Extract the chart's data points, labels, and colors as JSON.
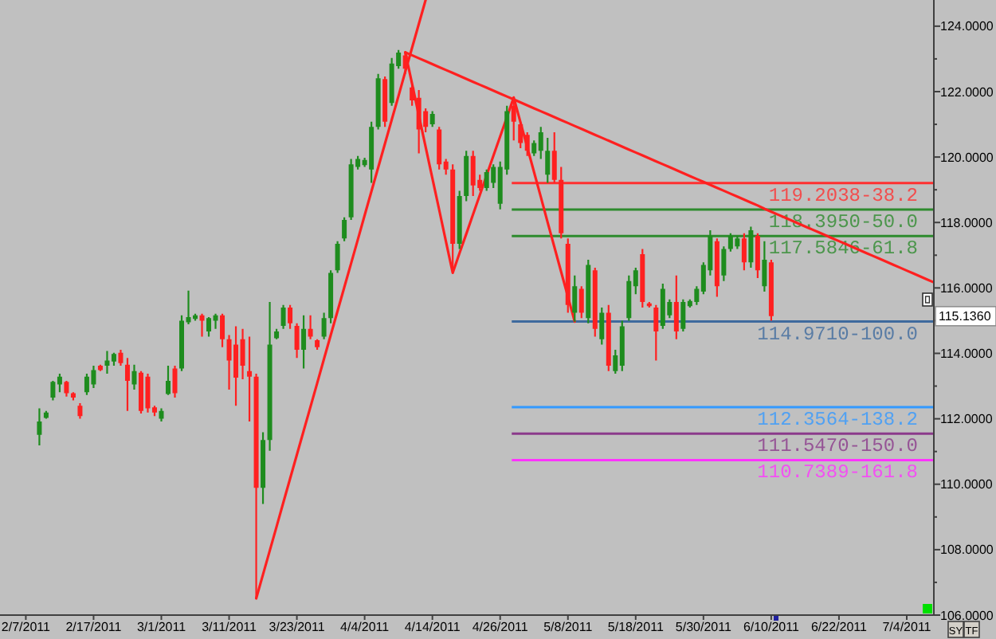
{
  "chart_data": {
    "type": "candlestick",
    "categories": [
      "2/7/2011",
      null,
      null,
      null,
      null,
      null,
      null,
      null,
      null,
      null,
      "2/17/2011",
      null,
      null,
      null,
      null,
      null,
      null,
      null,
      null,
      null,
      "3/1/2011",
      null,
      null,
      null,
      null,
      null,
      null,
      null,
      null,
      null,
      "3/11/2011",
      null,
      null,
      null,
      null,
      null,
      null,
      null,
      null,
      null,
      "3/23/2011",
      null,
      null,
      null,
      null,
      null,
      null,
      null,
      null,
      null,
      "4/4/2011",
      null,
      null,
      null,
      null,
      null,
      null,
      null,
      null,
      null,
      "4/14/2011",
      null,
      null,
      null,
      null,
      null,
      null,
      null,
      null,
      null,
      "4/26/2011",
      null,
      null,
      null,
      null,
      null,
      null,
      null,
      null,
      null,
      "5/8/2011",
      null,
      null,
      null,
      null,
      null,
      null,
      null,
      null,
      null,
      "5/18/2011",
      null,
      null,
      null,
      null,
      null,
      null,
      null,
      null,
      null,
      "5/30/2011",
      null,
      null,
      null,
      null,
      null,
      null,
      null,
      null,
      null,
      "6/10/2011",
      null,
      null,
      null,
      null,
      null,
      null,
      null,
      null,
      null,
      "6/22/2011",
      null,
      null,
      null,
      null,
      null,
      null,
      null,
      null,
      null,
      "7/4/2011",
      null,
      null,
      null,
      null
    ],
    "ohlc": [
      null,
      null,
      [
        111.51,
        112.32,
        111.19,
        111.92
      ],
      [
        112.03,
        112.24,
        112.0,
        112.19
      ],
      [
        112.65,
        113.16,
        112.56,
        113.13
      ],
      [
        113.05,
        113.38,
        112.81,
        113.29
      ],
      [
        113.13,
        113.16,
        112.68,
        112.78
      ],
      [
        112.78,
        112.81,
        112.56,
        112.65
      ],
      [
        112.4,
        112.48,
        112.0,
        112.08
      ],
      [
        112.81,
        113.38,
        112.73,
        113.29
      ],
      [
        113.05,
        113.62,
        112.94,
        113.49
      ],
      [
        113.62,
        113.65,
        113.46,
        113.49
      ],
      [
        113.62,
        114.07,
        113.38,
        113.78
      ],
      [
        113.75,
        114.02,
        113.62,
        113.98
      ],
      [
        114.02,
        114.11,
        113.62,
        113.7
      ],
      [
        113.65,
        113.86,
        112.24,
        113.16
      ],
      [
        113.05,
        113.65,
        112.89,
        113.46
      ],
      [
        113.41,
        113.46,
        112.16,
        112.24
      ],
      [
        113.29,
        113.38,
        112.19,
        112.32
      ],
      [
        112.35,
        112.4,
        112.08,
        112.19
      ],
      [
        112.0,
        112.32,
        111.92,
        112.24
      ],
      [
        112.76,
        113.62,
        112.73,
        113.16
      ],
      [
        113.54,
        113.62,
        112.65,
        112.78
      ],
      [
        113.54,
        115.16,
        113.46,
        115.0
      ],
      [
        114.95,
        115.92,
        114.89,
        115.11
      ],
      [
        115.05,
        115.21,
        115.0,
        115.16
      ],
      [
        115.16,
        115.21,
        114.51,
        115.0
      ],
      [
        114.67,
        115.11,
        114.51,
        115.08
      ],
      [
        115.0,
        115.21,
        114.75,
        115.16
      ],
      [
        115.16,
        115.21,
        114.19,
        114.43
      ],
      [
        114.43,
        114.56,
        112.89,
        113.78
      ],
      [
        114.27,
        114.83,
        112.4,
        113.26
      ],
      [
        114.43,
        114.75,
        113.21,
        113.62
      ],
      [
        113.46,
        114.51,
        111.92,
        113.29
      ],
      [
        113.29,
        113.38,
        106.51,
        109.89
      ],
      [
        109.89,
        111.59,
        109.4,
        111.35
      ],
      [
        111.35,
        115.57,
        111.02,
        114.27
      ],
      [
        114.46,
        114.75,
        114.43,
        114.67
      ],
      [
        114.84,
        115.48,
        114.75,
        115.4
      ],
      [
        115.4,
        115.48,
        114.75,
        114.92
      ],
      [
        114.84,
        114.92,
        113.86,
        114.11
      ],
      [
        114.11,
        115.16,
        113.54,
        114.75
      ],
      [
        114.75,
        115.16,
        114.43,
        114.51
      ],
      [
        114.4,
        114.43,
        114.11,
        114.19
      ],
      [
        114.51,
        115.24,
        114.43,
        115.08
      ],
      [
        115.08,
        116.54,
        114.92,
        116.46
      ],
      [
        116.54,
        117.43,
        116.46,
        117.35
      ],
      [
        117.51,
        118.16,
        117.43,
        118.08
      ],
      [
        118.16,
        119.94,
        118.08,
        119.78
      ],
      [
        119.7,
        120.03,
        119.62,
        119.94
      ],
      [
        119.75,
        119.98,
        119.7,
        119.91
      ],
      [
        119.62,
        121.08,
        119.21,
        120.92
      ],
      [
        120.92,
        122.54,
        120.84,
        122.41
      ],
      [
        122.38,
        122.46,
        120.92,
        121.08
      ],
      [
        121.65,
        123.03,
        121.57,
        122.86
      ],
      [
        122.78,
        123.27,
        122.7,
        123.19
      ],
      [
        123.11,
        123.19,
        122.54,
        122.7
      ],
      [
        122.13,
        122.22,
        121.57,
        121.73
      ],
      [
        121.81,
        122.05,
        120.11,
        120.84
      ],
      [
        121.4,
        121.49,
        120.76,
        120.92
      ],
      [
        121.0,
        121.4,
        120.92,
        121.32
      ],
      [
        120.84,
        120.92,
        119.62,
        119.78
      ],
      [
        119.86,
        119.94,
        119.46,
        119.62
      ],
      [
        119.62,
        119.78,
        116.46,
        117.35
      ],
      [
        117.35,
        118.97,
        117.19,
        118.81
      ],
      [
        118.81,
        120.19,
        118.65,
        120.03
      ],
      [
        120.03,
        120.19,
        118.81,
        119.13
      ],
      [
        119.3,
        119.46,
        118.97,
        119.05
      ],
      [
        119.05,
        119.62,
        118.97,
        119.54
      ],
      [
        119.21,
        119.78,
        119.05,
        119.7
      ],
      [
        118.57,
        119.86,
        118.4,
        119.7
      ],
      [
        119.62,
        121.57,
        119.46,
        121.4
      ],
      [
        121.57,
        121.82,
        120.51,
        121.08
      ],
      [
        121.0,
        121.08,
        120.27,
        120.43
      ],
      [
        120.68,
        120.76,
        120.03,
        120.19
      ],
      [
        120.11,
        120.51,
        120.03,
        120.43
      ],
      [
        120.19,
        120.92,
        119.94,
        120.76
      ],
      [
        119.46,
        120.59,
        119.21,
        120.19
      ],
      [
        120.19,
        120.76,
        119.21,
        119.3
      ],
      [
        119.3,
        119.7,
        117.51,
        117.67
      ],
      [
        117.35,
        117.51,
        115.24,
        115.48
      ],
      [
        115.24,
        116.38,
        114.97,
        116.05
      ],
      [
        115.97,
        116.05,
        115.08,
        115.24
      ],
      [
        115.08,
        116.86,
        114.92,
        116.7
      ],
      [
        116.54,
        116.62,
        114.51,
        114.75
      ],
      [
        114.43,
        115.4,
        114.27,
        115.24
      ],
      [
        115.24,
        115.48,
        113.46,
        113.62
      ],
      [
        113.46,
        114.11,
        113.38,
        113.94
      ],
      [
        113.62,
        115.0,
        113.46,
        114.83
      ],
      [
        115.08,
        116.38,
        115.0,
        116.21
      ],
      [
        116.05,
        116.62,
        115.81,
        116.54
      ],
      [
        117.03,
        117.19,
        115.4,
        115.57
      ],
      [
        115.53,
        115.57,
        115.4,
        115.44
      ],
      [
        115.4,
        115.48,
        113.78,
        114.67
      ],
      [
        114.84,
        116.13,
        114.75,
        115.97
      ],
      [
        115.16,
        115.65,
        115.08,
        115.57
      ],
      [
        115.57,
        116.38,
        114.43,
        114.67
      ],
      [
        114.75,
        115.65,
        114.67,
        115.57
      ],
      [
        115.44,
        115.65,
        115.4,
        115.6
      ],
      [
        115.57,
        116.05,
        115.48,
        115.97
      ],
      [
        115.89,
        116.78,
        115.81,
        116.7
      ],
      [
        116.54,
        117.76,
        116.38,
        117.59
      ],
      [
        117.43,
        117.51,
        115.73,
        116.05
      ],
      [
        116.38,
        117.27,
        116.21,
        117.19
      ],
      [
        117.19,
        117.67,
        117.11,
        117.59
      ],
      [
        117.27,
        117.59,
        117.19,
        117.51
      ],
      [
        117.51,
        117.67,
        116.54,
        116.78
      ],
      [
        116.78,
        117.87,
        116.62,
        117.76
      ],
      [
        117.59,
        117.67,
        116.3,
        116.54
      ],
      [
        116.05,
        117.43,
        115.89,
        116.86
      ],
      [
        116.78,
        116.86,
        115.0,
        115.136
      ],
      null,
      null,
      null,
      null,
      null,
      null,
      null,
      null,
      null,
      null,
      null,
      null,
      null,
      null,
      null,
      null,
      null,
      null,
      null,
      null,
      null,
      null,
      null,
      null
    ],
    "colors": [
      null,
      null,
      "#1e8c1e",
      "#1e8c1e",
      "#1e8c1e",
      "#1e8c1e",
      "#ff2020",
      "#ff2020",
      "#ff2020",
      "#1e8c1e",
      "#1e8c1e",
      "#ff2020",
      "#1e8c1e",
      "#1e8c1e",
      "#ff2020",
      "#ff2020",
      "#1e8c1e",
      "#ff2020",
      "#ff2020",
      "#ff2020",
      "#1e8c1e",
      "#1e8c1e",
      "#ff2020",
      "#1e8c1e",
      "#1e8c1e",
      "#1e8c1e",
      "#ff2020",
      "#1e8c1e",
      "#1e8c1e",
      "#ff2020",
      "#ff2020",
      "#ff2020",
      "#ff2020",
      "#ff2020",
      "#ff2020",
      "#1e8c1e",
      "#1e8c1e",
      "#1e8c1e",
      "#1e8c1e",
      "#ff2020",
      "#ff2020",
      "#1e8c1e",
      "#ff2020",
      "#ff2020",
      "#1e8c1e",
      "#1e8c1e",
      "#1e8c1e",
      "#1e8c1e",
      "#1e8c1e",
      "#1e8c1e",
      "#1e8c1e",
      "#1e8c1e",
      "#1e8c1e",
      "#ff2020",
      "#1e8c1e",
      "#1e8c1e",
      "#ff2020",
      "#ff2020",
      "#ff2020",
      "#ff2020",
      "#1e8c1e",
      "#ff2020",
      "#ff2020",
      "#ff2020",
      "#1e8c1e",
      "#1e8c1e",
      "#ff2020",
      "#ff2020",
      "#1e8c1e",
      "#1e8c1e",
      "#1e8c1e",
      "#1e8c1e",
      "#ff2020",
      "#ff2020",
      "#ff2020",
      "#1e8c1e",
      "#1e8c1e",
      "#1e8c1e",
      "#ff2020",
      "#ff2020",
      "#ff2020",
      "#1e8c1e",
      "#ff2020",
      "#1e8c1e",
      "#ff2020",
      "#1e8c1e",
      "#ff2020",
      "#1e8c1e",
      "#1e8c1e",
      "#1e8c1e",
      "#1e8c1e",
      "#ff2020",
      "#ff2020",
      "#ff2020",
      "#1e8c1e",
      "#1e8c1e",
      "#ff2020",
      "#1e8c1e",
      "#1e8c1e",
      "#1e8c1e",
      "#1e8c1e",
      "#1e8c1e",
      "#ff2020",
      "#1e8c1e",
      "#1e8c1e",
      "#1e8c1e",
      "#ff2020",
      "#1e8c1e",
      "#ff2020",
      "#1e8c1e",
      "#ff2020",
      null,
      null,
      null,
      null,
      null,
      null,
      null,
      null,
      null,
      null,
      null,
      null,
      null,
      null,
      null,
      null,
      null,
      null,
      null,
      null,
      null,
      null,
      null,
      null
    ],
    "series": [
      {
        "type": "line",
        "color": "#ff2020",
        "values": [
          null,
          null,
          null,
          null,
          null,
          null,
          null,
          null,
          null,
          null,
          null,
          null,
          null,
          null,
          null,
          null,
          null,
          null,
          null,
          null,
          null,
          null,
          null,
          null,
          null,
          null,
          null,
          null,
          null,
          null,
          null,
          null,
          null,
          null,
          106.51,
          107.24,
          107.97,
          108.7,
          109.44,
          110.17,
          110.9,
          111.63,
          112.36,
          113.09,
          113.83,
          114.56,
          115.29,
          116.02,
          116.75,
          117.48,
          118.22,
          118.95,
          119.68,
          120.41,
          121.14,
          121.87,
          122.61,
          123.34,
          124.07,
          124.8,
          null,
          null,
          null,
          null,
          null,
          null,
          null,
          null,
          null,
          null,
          null,
          null,
          null,
          null,
          null,
          null,
          null,
          null,
          null,
          null,
          null,
          null,
          null,
          null,
          null,
          null,
          null,
          null,
          null,
          null,
          null,
          null,
          null,
          null,
          null,
          null,
          null,
          null,
          null,
          null,
          null,
          null,
          null,
          null,
          null,
          null,
          null,
          null,
          null,
          null,
          null,
          null,
          null,
          null,
          null,
          null,
          null,
          null,
          null,
          null,
          null,
          null,
          null,
          null,
          null,
          null,
          null,
          null,
          null,
          null,
          null,
          null,
          null,
          null,
          null
        ]
      },
      {
        "type": "line",
        "color": "#ff2020",
        "values": [
          null,
          null,
          null,
          null,
          null,
          null,
          null,
          null,
          null,
          null,
          null,
          null,
          null,
          null,
          null,
          null,
          null,
          null,
          null,
          null,
          null,
          null,
          null,
          null,
          null,
          null,
          null,
          null,
          null,
          null,
          null,
          null,
          null,
          null,
          null,
          null,
          null,
          null,
          null,
          null,
          null,
          null,
          null,
          null,
          null,
          null,
          null,
          null,
          null,
          null,
          null,
          null,
          null,
          null,
          null,
          null,
          123.2,
          122.24,
          121.27,
          120.31,
          119.35,
          118.39,
          117.42,
          116.46,
          117.06,
          117.65,
          118.25,
          118.84,
          119.44,
          120.04,
          120.63,
          121.22,
          121.82,
          121.06,
          120.3,
          119.54,
          118.78,
          118.01,
          117.25,
          116.49,
          115.73,
          114.97,
          null,
          null,
          null,
          null,
          null,
          null,
          null,
          null,
          null,
          null,
          null,
          null,
          null,
          null,
          null,
          null,
          null,
          null,
          null,
          null,
          null,
          null,
          null,
          null,
          null,
          null,
          null,
          null,
          null,
          null,
          null,
          null,
          null,
          null,
          null,
          null,
          null,
          null,
          null,
          null,
          null,
          null,
          null,
          null,
          null,
          null,
          null,
          null,
          null,
          null,
          null,
          null,
          null
        ]
      },
      {
        "type": "line",
        "color": "#ff2020",
        "values": [
          null,
          null,
          null,
          null,
          null,
          null,
          null,
          null,
          null,
          null,
          null,
          null,
          null,
          null,
          null,
          null,
          null,
          null,
          null,
          null,
          null,
          null,
          null,
          null,
          null,
          null,
          null,
          null,
          null,
          null,
          null,
          null,
          null,
          null,
          null,
          null,
          null,
          null,
          null,
          null,
          null,
          null,
          null,
          null,
          null,
          null,
          null,
          null,
          null,
          null,
          null,
          null,
          null,
          null,
          null,
          null,
          123.2,
          123.11,
          123.02,
          122.93,
          122.84,
          122.75,
          122.66,
          122.57,
          122.48,
          122.39,
          122.3,
          122.21,
          122.12,
          122.03,
          121.94,
          121.85,
          121.76,
          121.67,
          121.58,
          121.49,
          121.4,
          121.31,
          121.22,
          121.13,
          121.04,
          120.95,
          120.86,
          120.77,
          120.68,
          120.59,
          120.5,
          120.41,
          120.32,
          120.23,
          120.14,
          120.05,
          119.96,
          119.87,
          119.78,
          119.69,
          119.6,
          119.51,
          119.42,
          119.33,
          119.24,
          119.15,
          119.06,
          118.97,
          118.88,
          118.79,
          118.7,
          118.61,
          118.52,
          118.42,
          118.33,
          118.24,
          118.15,
          118.06,
          117.97,
          117.88,
          117.79,
          117.7,
          117.61,
          117.52,
          117.43,
          117.34,
          117.25,
          117.16,
          117.07,
          116.98,
          116.89,
          116.8,
          116.71,
          116.62,
          116.53,
          116.44,
          116.35,
          116.26,
          116.17
        ]
      }
    ],
    "ylim": [
      106,
      124.8
    ],
    "yticks": [
      {
        "value": 106,
        "label": "106.0000"
      },
      {
        "value": 107,
        "label": null
      },
      {
        "value": 108,
        "label": "108.0000"
      },
      {
        "value": 109,
        "label": null
      },
      {
        "value": 110,
        "label": "110.0000"
      },
      {
        "value": 111,
        "label": null
      },
      {
        "value": 112,
        "label": "112.0000"
      },
      {
        "value": 113,
        "label": null
      },
      {
        "value": 114,
        "label": "114.0000"
      },
      {
        "value": 115,
        "label": null
      },
      {
        "value": 116,
        "label": "116.0000"
      },
      {
        "value": 117,
        "label": null
      },
      {
        "value": 118,
        "label": "118.0000"
      },
      {
        "value": 119,
        "label": null
      },
      {
        "value": 120,
        "label": "120.0000"
      },
      {
        "value": 121,
        "label": null
      },
      {
        "value": 122,
        "label": "122.0000"
      },
      {
        "value": 123,
        "label": null
      },
      {
        "value": 124,
        "label": "124.0000"
      }
    ],
    "ref_lines": [
      {
        "axis": "y",
        "value": 119.2038,
        "label": "119.2038-38.2",
        "color": "#ff3030"
      },
      {
        "axis": "y",
        "value": 118.395,
        "label": "118.3950-50.0",
        "color": "#2e8b2e"
      },
      {
        "axis": "y",
        "value": 117.5846,
        "label": "117.5846-61.8",
        "color": "#2e8b2e"
      },
      {
        "axis": "y",
        "value": 114.971,
        "label": "114.9710-100.0",
        "color": "#3e6a9e"
      },
      {
        "axis": "y",
        "value": 112.3564,
        "label": "112.3564-138.2",
        "color": "#3399ff"
      },
      {
        "axis": "y",
        "value": 111.547,
        "label": "111.5470-150.0",
        "color": "#8b3a8b"
      },
      {
        "axis": "y",
        "value": 110.7389,
        "label": "110.7389-161.8",
        "color": "#ff33ff"
      }
    ],
    "annotations": [
      {
        "text": "115.1360",
        "y": 115.136
      },
      "SY",
      "TF"
    ]
  }
}
